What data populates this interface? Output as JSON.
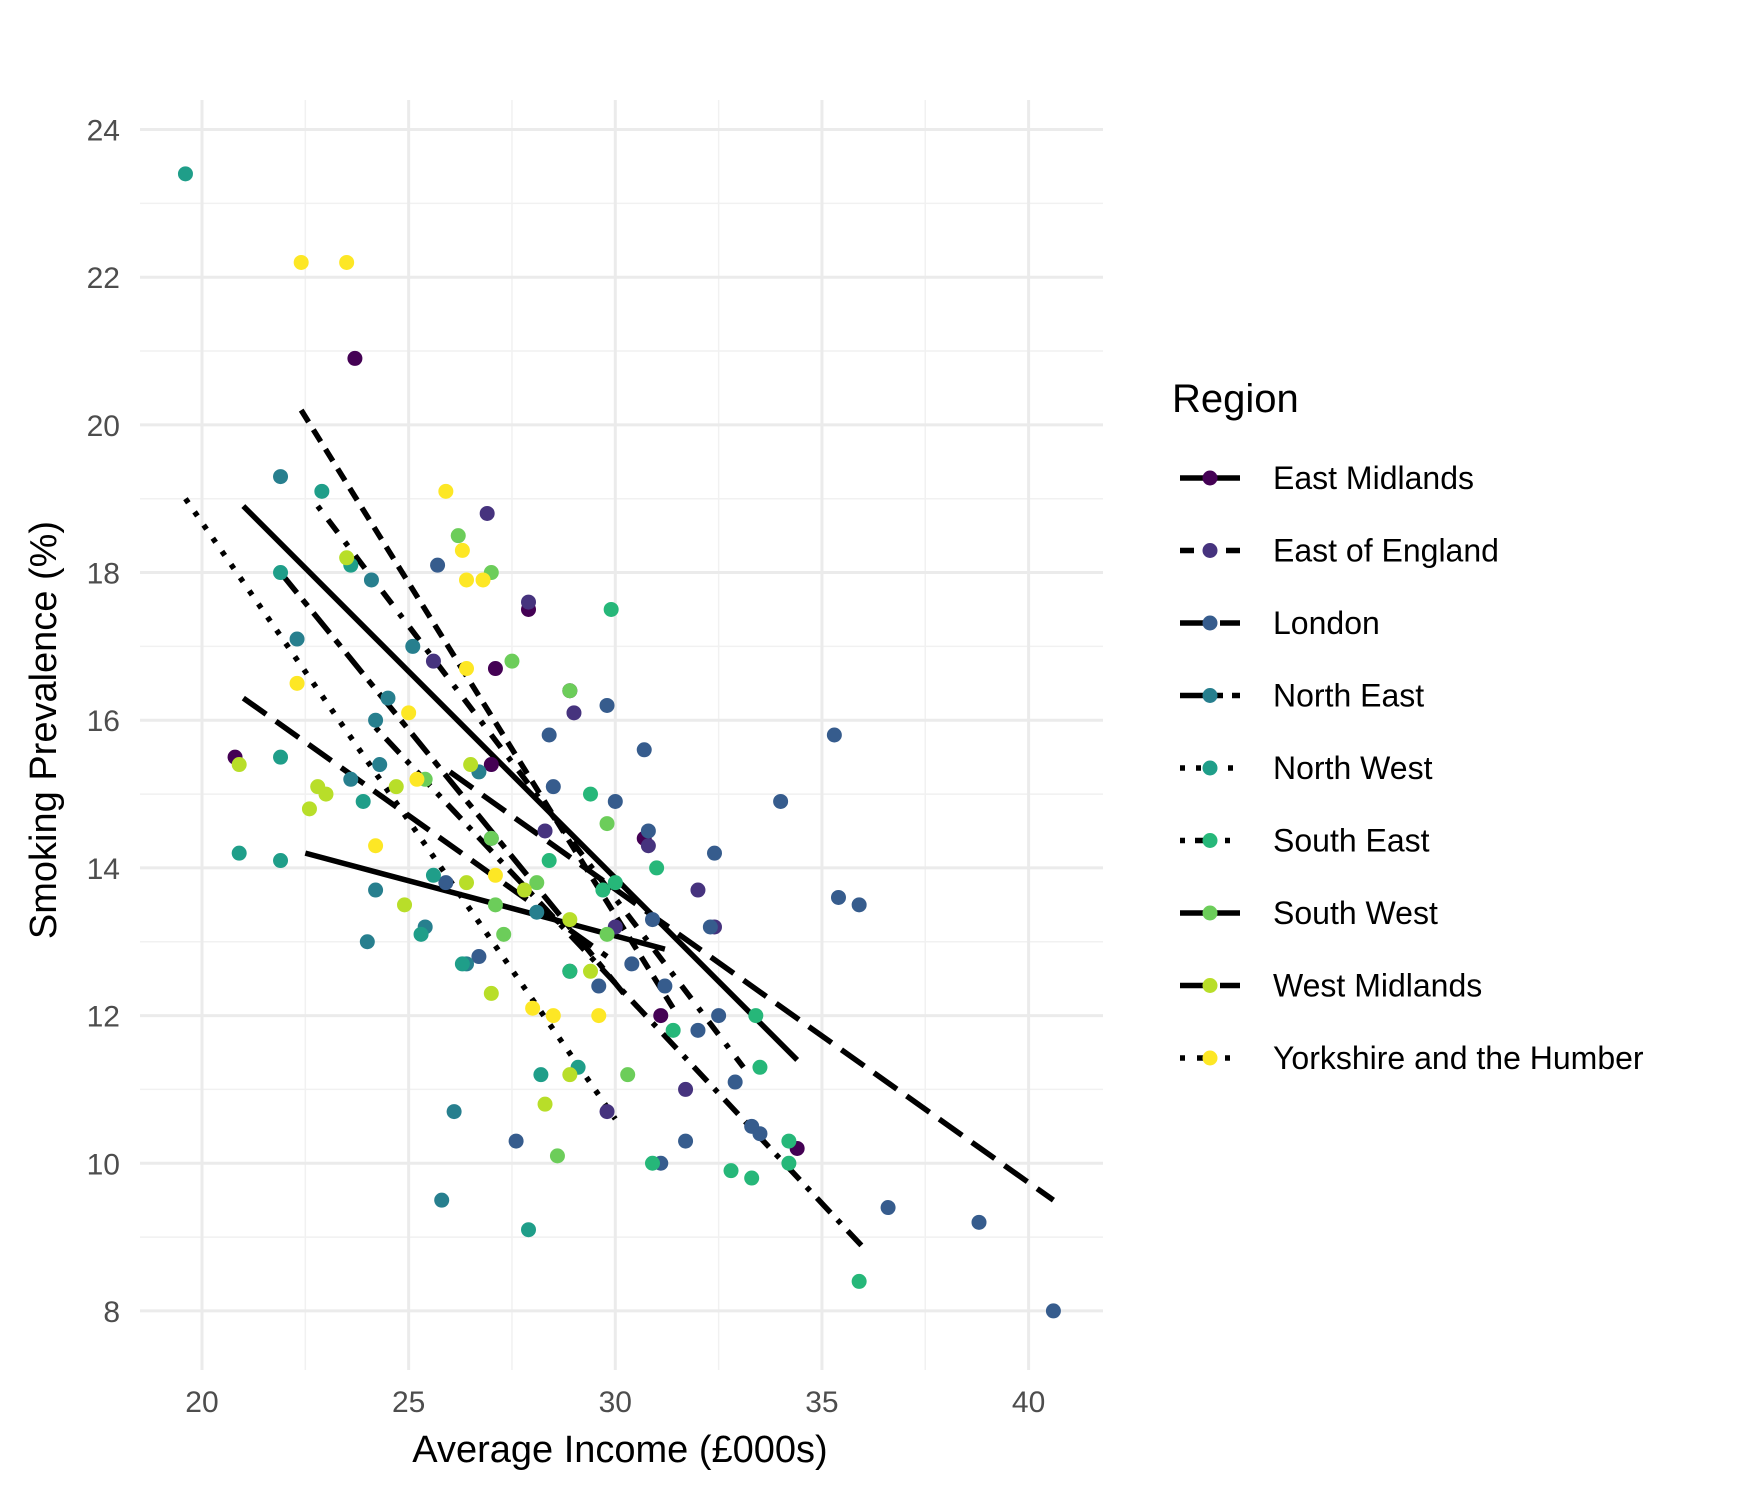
{
  "chart_data": {
    "type": "scatter",
    "title": "",
    "xlabel": "Average Income (£000s)",
    "ylabel": "Smoking Prevalence (%)",
    "xlim": [
      18.5,
      41.8
    ],
    "ylim": [
      7.2,
      24.4
    ],
    "xticks": [
      20,
      25,
      30,
      35,
      40
    ],
    "yticks": [
      8,
      10,
      12,
      14,
      16,
      18,
      20,
      22,
      24
    ],
    "xtick_labels": [
      "20",
      "25",
      "30",
      "35",
      "40"
    ],
    "ytick_labels": [
      "8",
      "10",
      "12",
      "14",
      "16",
      "18",
      "20",
      "22",
      "24"
    ],
    "grid": true,
    "legend": {
      "title": "Region",
      "position": "right"
    },
    "series": [
      {
        "name": "East Midlands",
        "color": "#440154",
        "dash": "solid",
        "points": [
          [
            20.8,
            15.5
          ],
          [
            23.7,
            20.9
          ],
          [
            27.0,
            15.4
          ],
          [
            27.1,
            16.7
          ],
          [
            28.9,
            16.4
          ],
          [
            30.7,
            14.4
          ],
          [
            31.1,
            12.0
          ],
          [
            34.4,
            10.2
          ],
          [
            27.9,
            17.5
          ]
        ],
        "trend": [
          [
            22.5,
            14.2
          ],
          [
            31.2,
            12.9
          ]
        ]
      },
      {
        "name": "East of England",
        "color": "#46337e",
        "dash": "dashed",
        "points": [
          [
            25.6,
            16.8
          ],
          [
            26.9,
            18.8
          ],
          [
            27.9,
            17.6
          ],
          [
            28.3,
            14.5
          ],
          [
            29.0,
            16.1
          ],
          [
            29.8,
            10.7
          ],
          [
            30.0,
            13.2
          ],
          [
            30.8,
            14.3
          ],
          [
            31.7,
            11.0
          ],
          [
            32.0,
            13.7
          ],
          [
            32.4,
            13.2
          ],
          [
            28.9,
            12.6
          ]
        ],
        "trend": [
          [
            22.4,
            20.2
          ],
          [
            31.4,
            12.1
          ]
        ]
      },
      {
        "name": "London",
        "color": "#365c8d",
        "dash": "longdash",
        "points": [
          [
            25.7,
            18.1
          ],
          [
            27.0,
            14.4
          ],
          [
            27.6,
            10.3
          ],
          [
            28.4,
            15.8
          ],
          [
            28.5,
            15.1
          ],
          [
            29.6,
            12.4
          ],
          [
            29.8,
            16.2
          ],
          [
            30.0,
            14.9
          ],
          [
            30.4,
            12.7
          ],
          [
            30.7,
            15.6
          ],
          [
            30.8,
            14.5
          ],
          [
            30.9,
            13.3
          ],
          [
            31.1,
            10.0
          ],
          [
            31.2,
            12.4
          ],
          [
            31.7,
            10.3
          ],
          [
            32.0,
            11.8
          ],
          [
            32.4,
            14.2
          ],
          [
            32.3,
            13.2
          ],
          [
            32.5,
            12.0
          ],
          [
            32.9,
            11.1
          ],
          [
            33.3,
            10.5
          ],
          [
            33.5,
            10.4
          ],
          [
            34.0,
            14.9
          ],
          [
            35.3,
            15.8
          ],
          [
            35.4,
            13.6
          ],
          [
            35.9,
            13.5
          ],
          [
            36.6,
            9.4
          ],
          [
            38.8,
            9.2
          ],
          [
            40.6,
            8.0
          ],
          [
            26.7,
            12.8
          ],
          [
            25.9,
            13.8
          ]
        ],
        "trend": [
          [
            26.0,
            15.3
          ],
          [
            40.6,
            9.5
          ]
        ]
      },
      {
        "name": "North East",
        "color": "#277f8e",
        "dash": "twodash",
        "points": [
          [
            21.9,
            19.3
          ],
          [
            22.3,
            17.1
          ],
          [
            23.6,
            15.2
          ],
          [
            24.1,
            17.9
          ],
          [
            24.3,
            15.4
          ],
          [
            24.2,
            16.0
          ],
          [
            24.5,
            16.3
          ],
          [
            24.2,
            13.7
          ],
          [
            24.0,
            13.0
          ],
          [
            25.1,
            17.0
          ],
          [
            25.4,
            13.2
          ],
          [
            25.8,
            9.5
          ],
          [
            26.1,
            10.7
          ],
          [
            26.4,
            12.7
          ],
          [
            26.7,
            15.3
          ],
          [
            28.1,
            13.4
          ]
        ],
        "trend": [
          [
            21.9,
            18.0
          ],
          [
            30.2,
            12.3
          ]
        ]
      },
      {
        "name": "North West",
        "color": "#1f9e89",
        "dash": "dotted",
        "points": [
          [
            19.6,
            23.4
          ],
          [
            20.9,
            14.2
          ],
          [
            21.9,
            18.0
          ],
          [
            21.9,
            15.5
          ],
          [
            21.9,
            14.1
          ],
          [
            22.9,
            19.1
          ],
          [
            23.6,
            18.1
          ],
          [
            23.9,
            14.9
          ],
          [
            25.3,
            13.1
          ],
          [
            25.6,
            13.9
          ],
          [
            26.3,
            12.7
          ],
          [
            28.2,
            11.2
          ],
          [
            29.1,
            11.3
          ],
          [
            27.9,
            9.1
          ]
        ],
        "trend": [
          [
            19.6,
            19.0
          ],
          [
            30.0,
            10.6
          ]
        ]
      },
      {
        "name": "South East",
        "color": "#26b779",
        "dash": "dotdash",
        "points": [
          [
            28.4,
            14.1
          ],
          [
            28.9,
            12.6
          ],
          [
            29.4,
            15.0
          ],
          [
            29.7,
            13.7
          ],
          [
            29.9,
            17.5
          ],
          [
            30.0,
            13.8
          ],
          [
            31.0,
            14.0
          ],
          [
            31.4,
            11.8
          ],
          [
            32.8,
            9.9
          ],
          [
            33.3,
            9.8
          ],
          [
            33.4,
            12.0
          ],
          [
            33.5,
            11.3
          ],
          [
            34.2,
            10.3
          ],
          [
            34.2,
            10.0
          ],
          [
            35.9,
            8.4
          ],
          [
            30.9,
            10.0
          ]
        ],
        "trend": [
          [
            24.2,
            15.9
          ],
          [
            36.1,
            8.8
          ]
        ]
      },
      {
        "name": "South West",
        "color": "#6ccd5a",
        "dash": "solid",
        "points": [
          [
            25.4,
            15.2
          ],
          [
            26.2,
            18.5
          ],
          [
            27.0,
            18.0
          ],
          [
            27.0,
            14.4
          ],
          [
            27.3,
            13.1
          ],
          [
            27.5,
            16.8
          ],
          [
            28.1,
            13.8
          ],
          [
            28.6,
            10.1
          ],
          [
            28.9,
            16.4
          ],
          [
            29.8,
            14.6
          ],
          [
            29.8,
            13.1
          ],
          [
            30.3,
            11.2
          ],
          [
            27.1,
            13.5
          ]
        ],
        "trend": [
          [
            21.0,
            18.9
          ],
          [
            34.4,
            11.4
          ]
        ]
      },
      {
        "name": "West Midlands",
        "color": "#b8de29",
        "dash": "longdash",
        "points": [
          [
            20.9,
            15.4
          ],
          [
            22.6,
            14.8
          ],
          [
            22.8,
            15.1
          ],
          [
            23.0,
            15.0
          ],
          [
            23.5,
            18.2
          ],
          [
            24.7,
            15.1
          ],
          [
            24.9,
            13.5
          ],
          [
            26.5,
            15.4
          ],
          [
            26.4,
            13.8
          ],
          [
            27.0,
            12.3
          ],
          [
            27.8,
            13.7
          ],
          [
            28.3,
            10.8
          ],
          [
            28.9,
            11.2
          ],
          [
            29.4,
            12.6
          ],
          [
            28.9,
            13.3
          ]
        ],
        "trend": [
          [
            21.0,
            16.3
          ],
          [
            29.8,
            12.8
          ]
        ]
      },
      {
        "name": "Yorkshire and the Humber",
        "color": "#fde725",
        "dash": "dotdash2",
        "points": [
          [
            22.4,
            22.2
          ],
          [
            23.5,
            22.2
          ],
          [
            22.3,
            16.5
          ],
          [
            24.2,
            14.3
          ],
          [
            25.0,
            16.1
          ],
          [
            25.2,
            15.2
          ],
          [
            25.9,
            19.1
          ],
          [
            26.3,
            18.3
          ],
          [
            26.4,
            17.9
          ],
          [
            26.8,
            17.9
          ],
          [
            26.4,
            16.7
          ],
          [
            27.1,
            13.9
          ],
          [
            28.0,
            12.1
          ],
          [
            28.5,
            12.0
          ],
          [
            29.6,
            12.0
          ]
        ],
        "trend": [
          [
            22.8,
            18.9
          ],
          [
            33.1,
            11.3
          ]
        ]
      }
    ]
  }
}
